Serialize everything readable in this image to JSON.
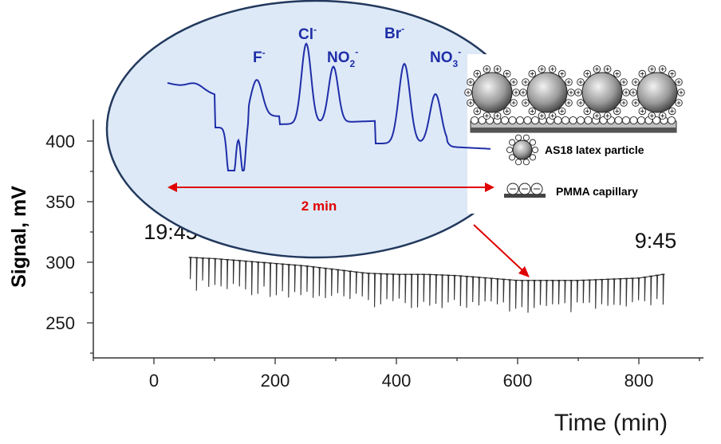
{
  "chart_data": [
    {
      "type": "line",
      "xlabel": "Time (min)",
      "ylabel": "Signal, mV",
      "xlim": [
        -95,
        910
      ],
      "ylim": [
        218,
        433
      ],
      "x_ticks": [
        "0",
        "200",
        "400",
        "600",
        "800"
      ],
      "y_ticks": [
        "250",
        "300",
        "350",
        "400"
      ],
      "grid": false,
      "annotations": {
        "start_time": "19:45",
        "end_time": "9:45"
      },
      "series": [
        {
          "baseline": {
            "x": [
              60,
              100,
              150,
              200,
              250,
              300,
              350,
              400,
              450,
              500,
              550,
              600,
              650,
              700,
              750,
              800,
              840
            ],
            "y": [
              304,
              303,
              301,
              299,
              297,
              294,
              291,
              290,
              290,
              289,
              287,
              285,
              285,
              285,
              286,
              287,
              290
            ]
          },
          "injection_count": 78,
          "dip_depth_mv": [
            18,
            28
          ]
        }
      ]
    },
    {
      "type": "line",
      "series": [
        {
          "description_peaks": [
            "F-",
            "Cl-",
            "NO2-",
            "Br-",
            "NO3-"
          ],
          "relative_peak_heights": [
            0.38,
            0.85,
            0.62,
            0.7,
            0.45
          ]
        }
      ],
      "span_label": "2 min"
    }
  ],
  "inset": {
    "ions": [
      {
        "base": "F",
        "sub": "",
        "sup": "-"
      },
      {
        "base": "Cl",
        "sub": "",
        "sup": "-"
      },
      {
        "base": "NO",
        "sub": "2",
        "sup": "-"
      },
      {
        "base": "Br",
        "sub": "",
        "sup": "-"
      },
      {
        "base": "NO",
        "sub": "3",
        "sup": "-"
      }
    ],
    "span_label": "2 min"
  },
  "legend": {
    "particle": "AS18 latex particle",
    "capillary": "PMMA capillary"
  },
  "colors": {
    "trace": "#1f2ea8",
    "ellipse_fill": "#dde9f7",
    "ellipse_stroke": "#23395d",
    "arrow": "#e00000",
    "signal": "#333333"
  }
}
